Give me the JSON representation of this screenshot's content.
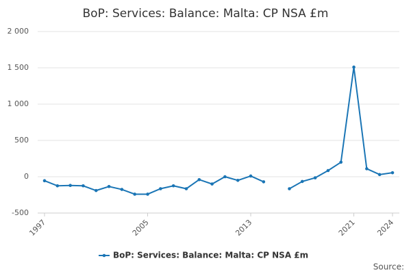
{
  "chart_data": {
    "type": "line",
    "title": "BoP: Services: Balance: Malta: CP NSA £m",
    "x": [
      1997,
      1998,
      1999,
      2000,
      2001,
      2002,
      2003,
      2004,
      2005,
      2006,
      2007,
      2008,
      2009,
      2010,
      2011,
      2012,
      2013,
      2014,
      2015,
      2016,
      2017,
      2018,
      2019,
      2020,
      2021,
      2022,
      2023,
      2024
    ],
    "series": [
      {
        "name": "BoP: Services: Balance: Malta: CP NSA £m",
        "color": "#1a75b5",
        "values": [
          -55,
          -125,
          -120,
          -125,
          -190,
          -135,
          -175,
          -240,
          -240,
          -165,
          -125,
          -165,
          -40,
          -100,
          0,
          -50,
          10,
          -70,
          null,
          -165,
          -65,
          -15,
          85,
          200,
          1510,
          110,
          30,
          55
        ]
      }
    ],
    "xlim": [
      1997,
      2024
    ],
    "xticks": [
      1997,
      2005,
      2013,
      2021,
      2024
    ],
    "ylim": [
      -500,
      2000
    ],
    "yticks": [
      -500,
      0,
      500,
      {
        "value": 1000,
        "label": "1 000"
      },
      {
        "value": 1500,
        "label": "1 500"
      },
      {
        "value": 2000,
        "label": "2 000"
      }
    ],
    "grid": true,
    "legend": "bottom",
    "source": "Source:"
  }
}
